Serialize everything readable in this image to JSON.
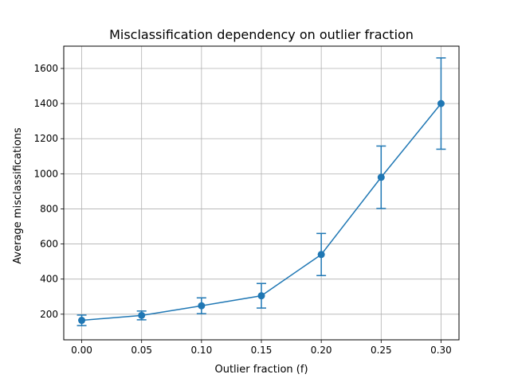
{
  "chart_data": {
    "type": "line",
    "title": "Misclassification dependency on outlier fraction",
    "xlabel": "Outlier fraction (f)",
    "ylabel": "Average misclassifications",
    "x": [
      0.0,
      0.05,
      0.1,
      0.15,
      0.2,
      0.25,
      0.3
    ],
    "series": [
      {
        "values": [
          165,
          193,
          248,
          305,
          540,
          980,
          1400
        ],
        "error": [
          30,
          25,
          45,
          70,
          120,
          178,
          260
        ]
      }
    ],
    "xticks": [
      0.0,
      0.05,
      0.1,
      0.15,
      0.2,
      0.25,
      0.3
    ],
    "xtick_labels": [
      "0.00",
      "0.05",
      "0.10",
      "0.15",
      "0.20",
      "0.25",
      "0.30"
    ],
    "yticks": [
      200,
      400,
      600,
      800,
      1000,
      1200,
      1400,
      1600
    ],
    "ytick_labels": [
      "200",
      "400",
      "600",
      "800",
      "1000",
      "1200",
      "1400",
      "1600"
    ],
    "xlim": [
      -0.015,
      0.315
    ],
    "ylim": [
      54,
      1727
    ],
    "grid": true,
    "color": "#1f77b4"
  }
}
